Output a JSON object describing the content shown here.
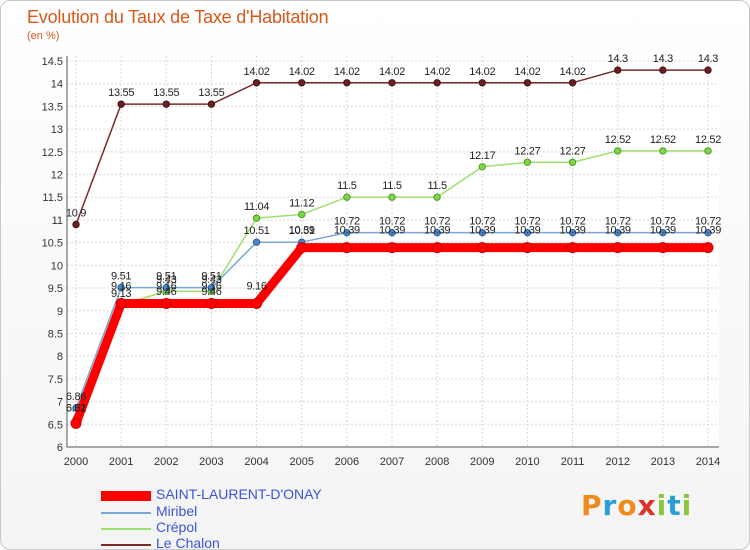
{
  "title": "Evolution du Taux de Taxe d'Habitation",
  "subtitle": "(en %)",
  "brand": {
    "letters": [
      "P",
      "r",
      "o",
      "x",
      "i",
      "t",
      "i"
    ],
    "colors": [
      "#f08a1c",
      "#2a9fd6",
      "#f08a1c",
      "#e0342b",
      "#8cc63f",
      "#2a9fd6",
      "#8cc63f"
    ]
  },
  "chart_data": {
    "type": "line",
    "title": "Evolution du Taux de Taxe d'Habitation",
    "ylabel": "(en %)",
    "xlabel": "",
    "ylim": [
      6,
      14.5
    ],
    "yticks": [
      "6",
      "6.5",
      "7",
      "7.5",
      "8",
      "8.5",
      "9",
      "9.5",
      "10",
      "10.5",
      "11",
      "11.5",
      "12",
      "12.5",
      "13",
      "13.5",
      "14",
      "14.5"
    ],
    "categories": [
      "2000",
      "2001",
      "2002",
      "2003",
      "2004",
      "2005",
      "2006",
      "2007",
      "2008",
      "2009",
      "2010",
      "2011",
      "2012",
      "2013",
      "2014"
    ],
    "series": [
      {
        "name": "SAINT-LAURENT-D'ONAY",
        "color": "#ff0000",
        "values": [
          6.52,
          9.16,
          9.16,
          9.16,
          9.16,
          10.39,
          10.39,
          10.39,
          10.39,
          10.39,
          10.39,
          10.39,
          10.39,
          10.39,
          10.39
        ],
        "labels": [
          "6.52",
          "9.16",
          "9.16",
          "9.16",
          "9.16",
          "10.39",
          "10.39",
          "10.39",
          "10.39",
          "10.39",
          "10.39",
          "10.39",
          "10.39",
          "10.39",
          "10.39"
        ]
      },
      {
        "name": "Miribel",
        "color": "#7aa8d6",
        "values": [
          6.86,
          9.51,
          9.51,
          9.51,
          10.51,
          10.51,
          10.72,
          10.72,
          10.72,
          10.72,
          10.72,
          10.72,
          10.72,
          10.72,
          10.72
        ],
        "labels": [
          "6.86",
          "9.51",
          "9.51",
          "9.51",
          "10.51",
          "10.51",
          "10.72",
          "10.72",
          "10.72",
          "10.72",
          "10.72",
          "10.72",
          "10.72",
          "10.72",
          "10.72"
        ]
      },
      {
        "name": "Crépol",
        "color": "#9ee06e",
        "values": [
          6.61,
          9.13,
          9.43,
          9.43,
          11.04,
          11.12,
          11.5,
          11.5,
          11.5,
          12.17,
          12.27,
          12.27,
          12.52,
          12.52,
          12.52
        ],
        "labels": [
          "6.61",
          "9.13",
          "9.43",
          "9.43",
          "11.04",
          "11.12",
          "11.5",
          "11.5",
          "11.5",
          "12.17",
          "12.27",
          "12.27",
          "12.52",
          "12.52",
          "12.52"
        ]
      },
      {
        "name": "Le Chalon",
        "color": "#7a2a2a",
        "values": [
          10.9,
          13.55,
          13.55,
          13.55,
          14.02,
          14.02,
          14.02,
          14.02,
          14.02,
          14.02,
          14.02,
          14.02,
          14.3,
          14.3,
          14.3
        ],
        "labels": [
          "10.9",
          "13.55",
          "13.55",
          "13.55",
          "14.02",
          "14.02",
          "14.02",
          "14.02",
          "14.02",
          "14.02",
          "14.02",
          "14.02",
          "14.3",
          "14.3",
          "14.3"
        ]
      }
    ],
    "other_labels": [
      "9.46",
      "9.46"
    ]
  }
}
